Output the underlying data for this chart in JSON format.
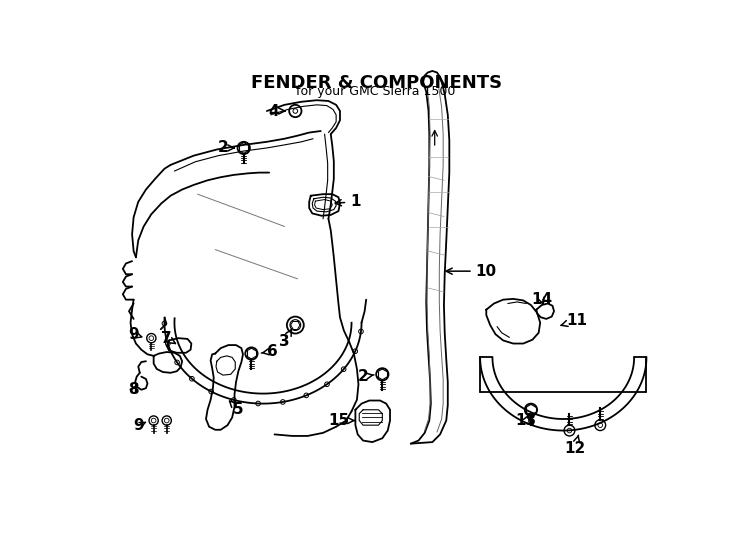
{
  "title": "FENDER & COMPONENTS",
  "subtitle": "for your GMC Sierra 1500",
  "bg_color": "#ffffff",
  "line_color": "#000000",
  "lw": 1.3
}
